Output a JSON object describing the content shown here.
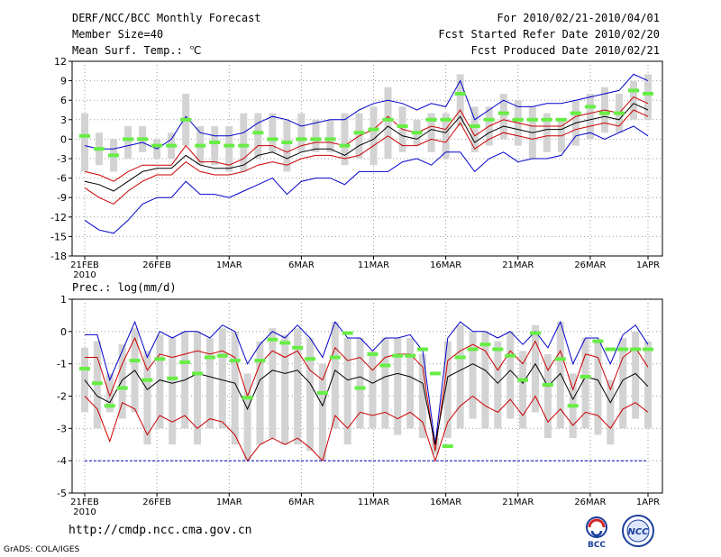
{
  "header": {
    "title": "DERF/NCC/BCC Monthly Forecast",
    "member_size": "Member Size=40",
    "variable": "Mean Surf. Temp.: ℃",
    "period": "For 2010/02/21-2010/04/01",
    "started": "Fcst Started Refer Date 2010/02/20",
    "produced": "Fcst Produced Date 2010/02/21"
  },
  "footer": {
    "url": "http://cmdp.ncc.cma.gov.cn",
    "credit": "GrADS: COLA/IGES",
    "logo_left_text": "BCC",
    "logo_right_text": "NCC"
  },
  "colors": {
    "box": "#d3d3d3",
    "median": "#66ee44",
    "mean": "#000000",
    "spread": "#cc0000",
    "range": "#0000cc",
    "grid": "#999999"
  },
  "chart_data": [
    {
      "type": "line",
      "title": "Mean Surf. Temp.: ℃",
      "x_tick_labels": [
        "21FEB",
        "26FEB",
        "1MAR",
        "6MAR",
        "11MAR",
        "16MAR",
        "21MAR",
        "26MAR",
        "1APR"
      ],
      "x_year_label": "2010",
      "ylim": [
        -18,
        12
      ],
      "yticks": [
        12,
        9,
        6,
        3,
        0,
        -3,
        -6,
        -9,
        -12,
        -15,
        -18
      ],
      "series": [
        {
          "name": "max",
          "values": [
            -1,
            -1.5,
            -1.5,
            -1,
            -0.5,
            -1.5,
            0,
            3.5,
            1,
            0.5,
            0.5,
            1,
            2.5,
            3.5,
            3,
            2,
            2.5,
            3,
            3,
            4.5,
            5.5,
            6,
            5.5,
            4.5,
            5.5,
            5,
            9,
            3,
            4.5,
            6,
            5,
            5,
            5.5,
            5.5,
            6,
            6.5,
            7,
            7.5,
            10,
            9
          ]
        },
        {
          "name": "upper",
          "values": [
            -5,
            -5.5,
            -6.5,
            -5,
            -4,
            -4,
            -4,
            -1,
            -3.5,
            -3.5,
            -4,
            -3,
            -1,
            -1,
            -2,
            -1,
            -0.5,
            -0.5,
            -1,
            0.5,
            1.5,
            3.5,
            1.5,
            1,
            2,
            1.5,
            4.5,
            0.5,
            2,
            3,
            2.5,
            2,
            2,
            2,
            3.5,
            4,
            4.5,
            4,
            6.5,
            5.5
          ]
        },
        {
          "name": "mean",
          "values": [
            -6.5,
            -7,
            -8,
            -6.5,
            -5,
            -4.5,
            -4.5,
            -2.5,
            -4,
            -4.5,
            -4.5,
            -4,
            -2.5,
            -2,
            -3,
            -2,
            -1.5,
            -1.5,
            -2.5,
            -1,
            0,
            2,
            0.5,
            0,
            1.5,
            1,
            3.5,
            -0.5,
            1,
            2,
            1.5,
            1,
            1.5,
            1.5,
            2.5,
            3,
            3.5,
            3,
            5.5,
            4.5
          ]
        },
        {
          "name": "lower",
          "values": [
            -7.5,
            -9,
            -10,
            -8,
            -6.5,
            -5.5,
            -5.5,
            -3.5,
            -5,
            -5.5,
            -5.5,
            -5,
            -4,
            -3.5,
            -4,
            -3,
            -2.5,
            -2.5,
            -3,
            -2.5,
            -1,
            0.5,
            -1,
            -1,
            0,
            -0.5,
            2.5,
            -1.5,
            0,
            1,
            0.5,
            0,
            0.5,
            0.5,
            1.5,
            2,
            2.5,
            2,
            4.5,
            3.5
          ]
        },
        {
          "name": "min",
          "values": [
            -12.5,
            -14,
            -14.5,
            -12.5,
            -10,
            -9,
            -9,
            -6.5,
            -8.5,
            -8.5,
            -9,
            -8,
            -7,
            -6,
            -8.5,
            -6.5,
            -6,
            -6,
            -7,
            -5,
            -5,
            -5,
            -3.5,
            -3,
            -4,
            -2,
            -2,
            -5,
            -3,
            -2,
            -3.5,
            -3,
            -3,
            -2.5,
            0.5,
            1,
            0,
            1,
            2,
            0.5
          ]
        }
      ],
      "box_low": [
        -5,
        -4,
        -5,
        -3,
        -2,
        -3,
        -3,
        -1,
        -4,
        -4,
        -5,
        -5,
        -3,
        -2,
        -5,
        -2,
        -2,
        -2,
        -4,
        -3,
        -4,
        -3,
        -2,
        -1,
        -2,
        -3,
        2,
        -2,
        -1,
        0,
        -1,
        -3,
        -2,
        -2,
        -1,
        0,
        1,
        1,
        3,
        3
      ],
      "box_high": [
        4,
        1,
        0,
        2,
        2,
        0,
        1,
        7,
        2,
        2,
        2,
        4,
        4,
        4,
        3,
        4,
        3,
        3,
        4,
        4,
        5,
        8,
        5,
        3,
        4,
        4,
        10,
        5,
        5,
        7,
        6,
        5,
        4,
        3,
        6,
        7,
        8,
        7,
        9,
        10
      ],
      "median": [
        0.5,
        -1.5,
        -2.5,
        0,
        0,
        -1,
        -1,
        3,
        -1,
        -0.5,
        -1,
        -1,
        1,
        0,
        -0.5,
        0,
        0,
        0,
        -1,
        1,
        1.5,
        3,
        2,
        1,
        3,
        3,
        7,
        2,
        3,
        4,
        3,
        3,
        3,
        3,
        4,
        5,
        4,
        4,
        7.5,
        7
      ]
    },
    {
      "type": "line",
      "title": "Prec.: log(mm/d)",
      "x_tick_labels": [
        "21FEB",
        "26FEB",
        "1MAR",
        "6MAR",
        "11MAR",
        "16MAR",
        "21MAR",
        "26MAR",
        "1APR"
      ],
      "x_year_label": "2010",
      "ylim": [
        -5,
        1
      ],
      "yticks": [
        1,
        0,
        -1,
        -2,
        -3,
        -4,
        -5
      ],
      "series": [
        {
          "name": "max",
          "values": [
            -0.1,
            -0.1,
            -1.5,
            -0.6,
            0.3,
            -0.8,
            0,
            -0.2,
            0,
            0,
            -0.2,
            0.2,
            0,
            -1,
            -0.4,
            0,
            -0.2,
            0.2,
            -0.2,
            -0.8,
            0.3,
            -0.2,
            -0.2,
            -0.6,
            -0.2,
            -0.2,
            -0.1,
            -0.6,
            -3.5,
            -0.2,
            0.3,
            0,
            0,
            -0.2,
            0,
            -0.4,
            0,
            -0.5,
            0.3,
            -1,
            -0.2,
            -0.2,
            -1,
            -0.1,
            0.2,
            -0.4
          ]
        },
        {
          "name": "upper",
          "values": [
            -0.8,
            -0.8,
            -2,
            -1,
            -0.2,
            -1.2,
            -0.7,
            -0.8,
            -0.7,
            -0.6,
            -0.7,
            -0.6,
            -0.8,
            -2,
            -1,
            -0.6,
            -0.8,
            -0.6,
            -1.2,
            -1.5,
            -0.5,
            -0.9,
            -0.8,
            -1.2,
            -0.8,
            -0.7,
            -0.7,
            -1.1,
            -3.7,
            -0.9,
            -0.6,
            -0.4,
            -0.6,
            -1.2,
            -0.6,
            -1,
            -0.3,
            -1.2,
            -0.6,
            -1.8,
            -0.7,
            -0.8,
            -1.8,
            -0.8,
            -0.5,
            -1.1
          ]
        },
        {
          "name": "mean",
          "values": [
            -1.5,
            -2,
            -2.2,
            -1.5,
            -1.2,
            -1.8,
            -1.5,
            -1.6,
            -1.5,
            -1.3,
            -1.4,
            -1.5,
            -1.6,
            -2.4,
            -1.5,
            -1.2,
            -1.3,
            -1.2,
            -1.6,
            -2.3,
            -1.2,
            -1.5,
            -1.4,
            -1.6,
            -1.4,
            -1.3,
            -1.4,
            -1.6,
            -3.5,
            -1.4,
            -1.2,
            -1,
            -1.2,
            -1.6,
            -1.2,
            -1.6,
            -1,
            -1.7,
            -1.3,
            -2.1,
            -1.4,
            -1.5,
            -2.2,
            -1.5,
            -1.3,
            -1.7
          ]
        },
        {
          "name": "lower",
          "values": [
            -2,
            -2.4,
            -3.4,
            -2.2,
            -2.4,
            -3.2,
            -2.6,
            -2.8,
            -2.6,
            -3,
            -2.7,
            -2.8,
            -3.2,
            -4,
            -3.5,
            -3.3,
            -3.5,
            -3.3,
            -3.6,
            -4,
            -2.6,
            -3,
            -2.5,
            -2.6,
            -2.5,
            -2.7,
            -2.5,
            -2.8,
            -4,
            -2.8,
            -2.3,
            -2,
            -2.3,
            -2.5,
            -2.1,
            -2.6,
            -2,
            -2.8,
            -2.4,
            -2.9,
            -2.5,
            -2.6,
            -3,
            -2.4,
            -2.2,
            -2.5
          ]
        },
        {
          "name": "min",
          "values": [
            -4,
            -4,
            -4,
            -4,
            -4,
            -4,
            -4,
            -4,
            -4,
            -4,
            -4,
            -4,
            -4,
            -4,
            -4,
            -4,
            -4,
            -4,
            -4,
            -4,
            -4,
            -4,
            -4,
            -4,
            -4,
            -4,
            -4,
            -4,
            -4,
            -4,
            -4,
            -4,
            -4,
            -4,
            -4,
            -4,
            -4,
            -4,
            -4,
            -4,
            -4,
            -4,
            -4,
            -4,
            -4,
            -4
          ]
        }
      ],
      "box_low": [
        -2.5,
        -3,
        -2.5,
        -2.7,
        -2.5,
        -3.5,
        -3,
        -3.5,
        -3,
        -3.5,
        -3,
        -3,
        -3.5,
        -4,
        -3.5,
        -3.3,
        -3.5,
        -3.5,
        -3.7,
        -4,
        -3,
        -3.5,
        -3,
        -3,
        -3,
        -3.2,
        -3,
        -3.3,
        -3.8,
        -3.3,
        -3,
        -2.7,
        -3,
        -3,
        -2.7,
        -3,
        -2.5,
        -3.3,
        -3,
        -3.3,
        -3,
        -3.2,
        -3.5,
        -3,
        -2.7,
        -3
      ],
      "box_high": [
        -0.5,
        -0.3,
        -1.3,
        -0.4,
        0.1,
        -0.6,
        -0.1,
        -0.2,
        0,
        0,
        -0.2,
        0.1,
        0,
        -1.3,
        -0.3,
        0.1,
        -0.1,
        0.1,
        -0.2,
        -1,
        0.3,
        -0.2,
        -0.2,
        -0.6,
        -0.2,
        -0.2,
        -0.2,
        -0.7,
        -3.3,
        -0.3,
        0.2,
        0,
        0,
        -0.3,
        0,
        -0.6,
        0.2,
        -0.7,
        0.3,
        -1.3,
        -0.2,
        -0.3,
        -1.5,
        -0.2,
        0,
        -0.3
      ],
      "median": [
        -1.15,
        -1.6,
        -2.3,
        -1.75,
        -0.9,
        -1.5,
        -0.85,
        -1.45,
        -0.95,
        -1.3,
        -0.8,
        -0.75,
        -0.9,
        -2.05,
        -0.9,
        -0.25,
        -0.35,
        -0.5,
        -0.85,
        -1.9,
        -0.8,
        -0.05,
        -1.75,
        -0.7,
        -1.05,
        -0.75,
        -0.75,
        -0.55,
        -1.3,
        -3.55,
        -0.8,
        -0.55,
        -0.4,
        -0.55,
        -0.75,
        -1.5,
        -0.05,
        -1.65,
        -0.85,
        -2.3,
        -1.4,
        -0.3,
        -0.55,
        -0.55,
        -0.55,
        -0.55
      ]
    }
  ]
}
